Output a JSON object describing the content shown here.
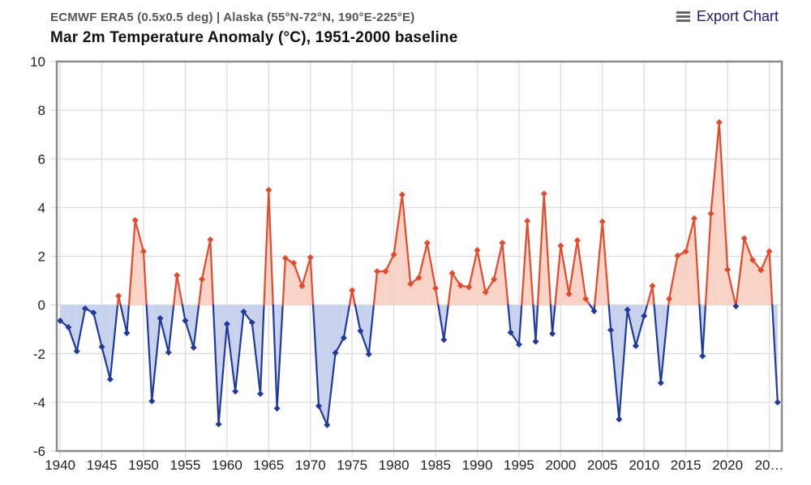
{
  "header": {
    "subtitle": "ECMWF ERA5 (0.5x0.5 deg) | Alaska (55°N-72°N, 190°E-225°E)",
    "title": "Mar 2m Temperature Anomaly (°C), 1951-2000 baseline",
    "export_label": "Export Chart",
    "export_icon": "menu-icon"
  },
  "colors": {
    "positive_line": "#e5492b",
    "positive_fill": "#f8d3c6",
    "negative_line": "#1f3a9e",
    "negative_fill": "#c8d2ec"
  },
  "chart_data": {
    "type": "area",
    "title": "Mar 2m Temperature Anomaly (°C), 1951-2000 baseline",
    "subtitle": "ECMWF ERA5 (0.5x0.5 deg) | Alaska (55°N-72°N, 190°E-225°E)",
    "xlabel": "",
    "ylabel": "",
    "xlim": [
      1939.6,
      2026.5
    ],
    "ylim": [
      -6,
      10
    ],
    "grid": true,
    "legend": "none",
    "x_ticks": [
      "1940",
      "1945",
      "1950",
      "1955",
      "1960",
      "1965",
      "1970",
      "1975",
      "1980",
      "1985",
      "1990",
      "1995",
      "2000",
      "2005",
      "2010",
      "2015",
      "2020",
      "20…"
    ],
    "x_tick_values": [
      1940,
      1945,
      1950,
      1955,
      1960,
      1965,
      1970,
      1975,
      1980,
      1985,
      1990,
      1995,
      2000,
      2005,
      2010,
      2015,
      2020,
      2025
    ],
    "y_ticks": [
      "-6",
      "-4",
      "-2",
      "0",
      "2",
      "4",
      "6",
      "8",
      "10"
    ],
    "y_tick_values": [
      -6,
      -4,
      -2,
      0,
      2,
      4,
      6,
      8,
      10
    ],
    "x": [
      1940,
      1941,
      1942,
      1943,
      1944,
      1945,
      1946,
      1947,
      1948,
      1949,
      1950,
      1951,
      1952,
      1953,
      1954,
      1955,
      1956,
      1957,
      1958,
      1959,
      1960,
      1961,
      1962,
      1963,
      1964,
      1965,
      1966,
      1967,
      1968,
      1969,
      1970,
      1971,
      1972,
      1973,
      1974,
      1975,
      1976,
      1977,
      1978,
      1979,
      1980,
      1981,
      1982,
      1983,
      1984,
      1985,
      1986,
      1987,
      1988,
      1989,
      1990,
      1991,
      1992,
      1993,
      1994,
      1995,
      1996,
      1997,
      1998,
      1999,
      2000,
      2001,
      2002,
      2003,
      2004,
      2005,
      2006,
      2007,
      2008,
      2009,
      2010,
      2011,
      2012,
      2013,
      2014,
      2015,
      2016,
      2017,
      2018,
      2019,
      2020,
      2021,
      2022,
      2023,
      2024,
      2025,
      2026
    ],
    "series": [
      {
        "name": "Mar 2m Temperature Anomaly",
        "values": [
          -0.65,
          -0.92,
          -1.9,
          -0.15,
          -0.32,
          -1.72,
          -3.05,
          0.37,
          -1.15,
          3.48,
          2.2,
          -3.95,
          -0.55,
          -1.95,
          1.22,
          -0.65,
          -1.75,
          1.05,
          2.68,
          -4.9,
          -0.78,
          -3.55,
          -0.28,
          -0.72,
          -3.65,
          4.72,
          -4.25,
          1.92,
          1.72,
          0.78,
          1.95,
          -4.15,
          -4.93,
          -1.97,
          -1.35,
          0.6,
          -1.07,
          -2.02,
          1.38,
          1.38,
          2.07,
          4.53,
          0.87,
          1.12,
          2.55,
          0.68,
          -1.43,
          1.3,
          0.8,
          0.73,
          2.25,
          0.52,
          1.05,
          2.55,
          -1.13,
          -1.62,
          3.45,
          -1.5,
          4.57,
          -1.18,
          2.43,
          0.45,
          2.65,
          0.25,
          -0.25,
          3.42,
          -1.03,
          -4.7,
          -0.2,
          -1.68,
          -0.45,
          0.78,
          -3.2,
          0.25,
          2.02,
          2.2,
          3.55,
          -2.1,
          3.75,
          7.5,
          1.45,
          -0.05,
          2.73,
          1.85,
          1.43,
          2.2,
          -4.0
        ]
      }
    ]
  }
}
